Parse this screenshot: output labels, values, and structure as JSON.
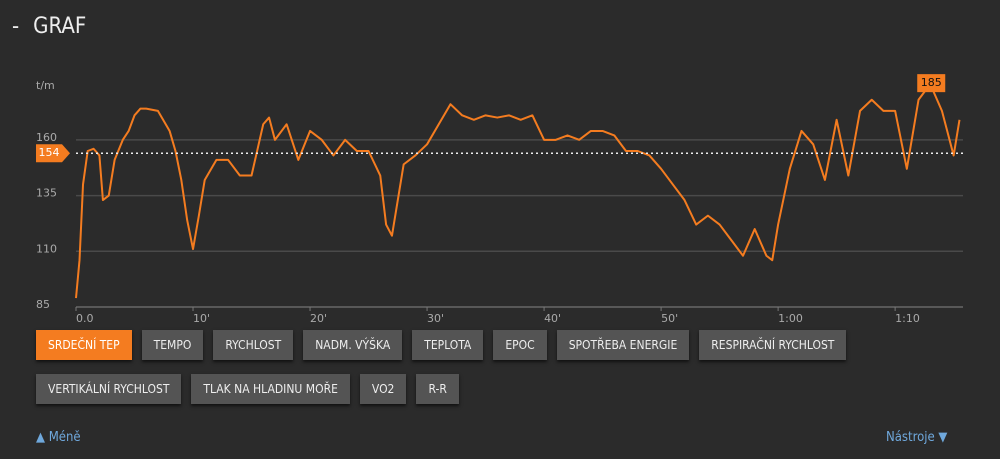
{
  "header": {
    "toggle": "-",
    "title": "GRAF"
  },
  "chart_data": {
    "type": "line",
    "y_label": "t/m",
    "x": [
      0,
      0.3,
      0.6,
      1,
      1.5,
      2,
      2.3,
      2.8,
      3.3,
      4,
      4.5,
      5,
      5.5,
      6,
      7,
      8,
      8.5,
      9,
      9.5,
      10,
      10.5,
      11,
      12,
      13,
      14,
      15,
      16,
      16.5,
      17,
      18,
      19,
      20,
      21,
      22,
      23,
      24,
      25,
      26,
      26.5,
      27,
      27.5,
      28,
      29,
      30,
      31,
      32,
      33,
      34,
      35,
      36,
      37,
      38,
      39,
      40,
      41,
      42,
      43,
      44,
      45,
      46,
      47,
      48,
      49,
      50,
      51,
      52,
      53,
      54,
      55,
      56,
      57,
      58,
      59,
      59.5,
      60,
      61,
      62,
      63,
      64,
      65,
      66,
      67,
      68,
      69,
      70,
      71,
      72,
      73,
      74,
      75,
      75.5
    ],
    "series": [
      {
        "name": "Srdeční tep",
        "color": "#f47c20",
        "values": [
          89,
          106,
          140,
          155,
          156,
          153,
          133,
          135,
          151,
          160,
          164,
          171,
          174,
          174,
          173,
          164,
          155,
          142,
          124,
          111,
          126,
          142,
          151,
          151,
          144,
          144,
          167,
          170,
          160,
          167,
          151,
          164,
          160,
          153,
          160,
          155,
          155,
          144,
          122,
          117,
          133,
          149,
          153,
          158,
          167,
          176,
          171,
          169,
          171,
          170,
          171,
          169,
          171,
          160,
          160,
          162,
          160,
          164,
          164,
          162,
          155,
          155,
          153,
          147,
          140,
          133,
          122,
          126,
          122,
          115,
          108,
          120,
          108,
          106,
          122,
          147,
          164,
          158,
          142,
          169,
          144,
          173,
          178,
          173,
          173,
          147,
          178,
          185,
          173,
          153,
          169
        ]
      }
    ],
    "average": 154,
    "max": 185,
    "xlim": [
      0,
      75.8
    ],
    "ylim": [
      85,
      190
    ],
    "xticks": [
      {
        "value": 0,
        "label": "0.0"
      },
      {
        "value": 10,
        "label": "10'"
      },
      {
        "value": 20,
        "label": "20'"
      },
      {
        "value": 30,
        "label": "30'"
      },
      {
        "value": 40,
        "label": "40'"
      },
      {
        "value": 50,
        "label": "50'"
      },
      {
        "value": 60,
        "label": "1:00"
      },
      {
        "value": 70,
        "label": "1:10"
      }
    ],
    "yticks": [
      85,
      110,
      135,
      160
    ],
    "grid": true
  },
  "buttons": [
    "SRDEČNÍ TEP",
    "TEMPO",
    "RYCHLOST",
    "NADM. VÝŠKA",
    "TEPLOTA",
    "EPOC",
    "SPOTŘEBA ENERGIE",
    "RESPIRAČNÍ RYCHLOST",
    "VERTIKÁLNÍ RYCHLOST",
    "TLAK NA HLADINU MOŘE",
    "VO2",
    "R-R"
  ],
  "active_button": 0,
  "footer": {
    "less": "Méně",
    "tools": "Nástroje"
  }
}
